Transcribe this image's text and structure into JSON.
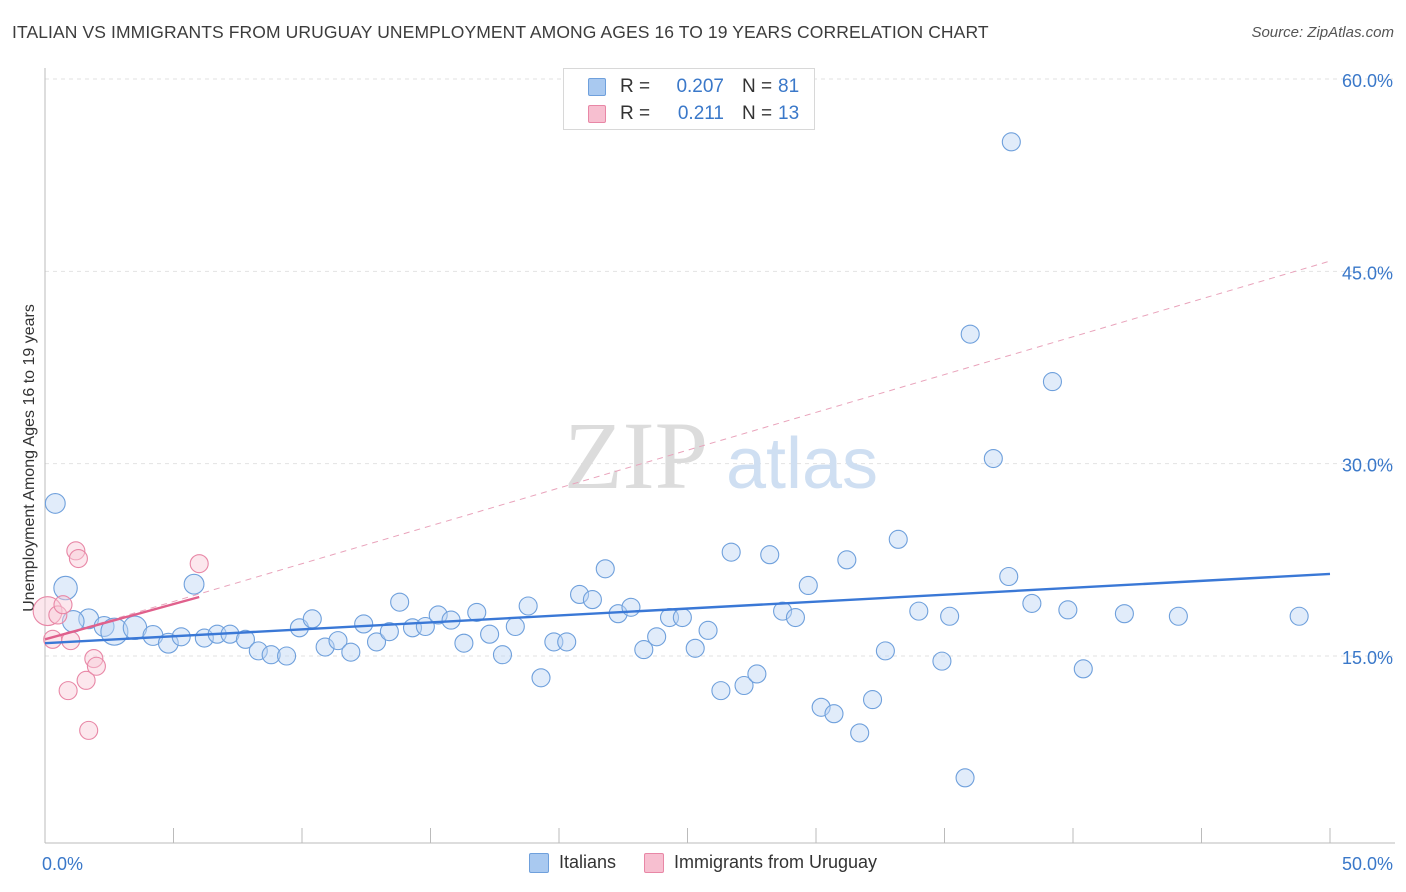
{
  "header": {
    "title": "ITALIAN VS IMMIGRANTS FROM URUGUAY UNEMPLOYMENT AMONG AGES 16 TO 19 YEARS CORRELATION CHART",
    "source": "Source: ZipAtlas.com"
  },
  "watermark": {
    "zip": "ZIP",
    "atlas": "atlas"
  },
  "legend": {
    "rows": [
      {
        "r_label": "R =",
        "r_value": "0.207",
        "n_label": "N =",
        "n_value": "81",
        "color": "#a9c9f0",
        "border": "#6fa0dc"
      },
      {
        "r_label": "R =",
        "r_value": "0.211",
        "n_label": "N =",
        "n_value": "13",
        "color": "#f7bfd0",
        "border": "#e887a6"
      }
    ],
    "bottom": [
      {
        "label": "Italians",
        "color": "#a9c9f0",
        "border": "#6fa0dc"
      },
      {
        "label": "Immigrants from Uruguay",
        "color": "#f7bfd0",
        "border": "#e887a6"
      }
    ]
  },
  "chart_data": {
    "type": "scatter",
    "title": "ITALIAN VS IMMIGRANTS FROM URUGUAY UNEMPLOYMENT AMONG AGES 16 TO 19 YEARS CORRELATION CHART",
    "xlabel": "",
    "ylabel": "Unemployment Among Ages 16 to 19 years",
    "xlim": [
      0,
      50
    ],
    "ylim": [
      0,
      62
    ],
    "x_tick_labels": [
      {
        "value": 0,
        "label": "0.0%"
      },
      {
        "value": 50,
        "label": "50.0%"
      }
    ],
    "y_tick_labels": [
      {
        "value": 15,
        "label": "15.0%"
      },
      {
        "value": 30,
        "label": "30.0%"
      },
      {
        "value": 45,
        "label": "45.0%"
      },
      {
        "value": 60,
        "label": "60.0%"
      }
    ],
    "grid": true,
    "colors": {
      "italians": "#3a78d6",
      "uruguay": "#e0608c"
    },
    "series": [
      {
        "name": "Italians",
        "points": [
          [
            0.4,
            26.9,
            1.1
          ],
          [
            0.8,
            20.3,
            1.3
          ],
          [
            1.7,
            17.9,
            1.1
          ],
          [
            2.3,
            17.3,
            1.1
          ],
          [
            1.1,
            17.7,
            1.2
          ],
          [
            2.7,
            16.9,
            1.5
          ],
          [
            3.5,
            17.2,
            1.3
          ],
          [
            4.2,
            16.6,
            1.1
          ],
          [
            4.8,
            16.0,
            1.1
          ],
          [
            5.3,
            16.5,
            1.0
          ],
          [
            5.8,
            20.6,
            1.1
          ],
          [
            6.2,
            16.4,
            1.0
          ],
          [
            6.7,
            16.7,
            1.0
          ],
          [
            7.2,
            16.7,
            1.0
          ],
          [
            7.8,
            16.3,
            1.0
          ],
          [
            8.3,
            15.4,
            1.0
          ],
          [
            8.8,
            15.1,
            1.0
          ],
          [
            9.4,
            15.0,
            1.0
          ],
          [
            9.9,
            17.2,
            1.0
          ],
          [
            10.4,
            17.9,
            1.0
          ],
          [
            10.9,
            15.7,
            1.0
          ],
          [
            11.4,
            16.2,
            1.0
          ],
          [
            11.9,
            15.3,
            1.0
          ],
          [
            12.4,
            17.5,
            1.0
          ],
          [
            12.9,
            16.1,
            1.0
          ],
          [
            13.4,
            16.9,
            1.0
          ],
          [
            13.8,
            19.2,
            1.0
          ],
          [
            14.3,
            17.2,
            1.0
          ],
          [
            14.8,
            17.3,
            1.0
          ],
          [
            15.3,
            18.2,
            1.0
          ],
          [
            15.8,
            17.8,
            1.0
          ],
          [
            16.3,
            16.0,
            1.0
          ],
          [
            16.8,
            18.4,
            1.0
          ],
          [
            17.3,
            16.7,
            1.0
          ],
          [
            17.8,
            15.1,
            1.0
          ],
          [
            18.3,
            17.3,
            1.0
          ],
          [
            18.8,
            18.9,
            1.0
          ],
          [
            19.3,
            13.3,
            1.0
          ],
          [
            19.8,
            16.1,
            1.0
          ],
          [
            20.3,
            16.1,
            1.0
          ],
          [
            20.8,
            19.8,
            1.0
          ],
          [
            21.3,
            19.4,
            1.0
          ],
          [
            21.8,
            21.8,
            1.0
          ],
          [
            22.3,
            18.3,
            1.0
          ],
          [
            22.8,
            18.8,
            1.0
          ],
          [
            23.3,
            15.5,
            1.0
          ],
          [
            23.8,
            16.5,
            1.0
          ],
          [
            24.3,
            18.0,
            1.0
          ],
          [
            24.8,
            18.0,
            1.0
          ],
          [
            25.3,
            15.6,
            1.0
          ],
          [
            25.8,
            17.0,
            1.0
          ],
          [
            26.3,
            12.3,
            1.0
          ],
          [
            26.7,
            23.1,
            1.0
          ],
          [
            27.2,
            12.7,
            1.0
          ],
          [
            27.7,
            13.6,
            1.0
          ],
          [
            28.2,
            22.9,
            1.0
          ],
          [
            28.7,
            18.5,
            1.0
          ],
          [
            29.2,
            18.0,
            1.0
          ],
          [
            29.7,
            20.5,
            1.0
          ],
          [
            30.2,
            11.0,
            1.0
          ],
          [
            30.7,
            10.5,
            1.0
          ],
          [
            31.2,
            22.5,
            1.0
          ],
          [
            31.7,
            9.0,
            1.0
          ],
          [
            32.2,
            11.6,
            1.0
          ],
          [
            32.7,
            15.4,
            1.0
          ],
          [
            33.2,
            24.1,
            1.0
          ],
          [
            34.0,
            18.5,
            1.0
          ],
          [
            34.9,
            14.6,
            1.0
          ],
          [
            35.2,
            18.1,
            1.0
          ],
          [
            35.8,
            5.5,
            1.0
          ],
          [
            36.0,
            40.1,
            1.0
          ],
          [
            36.9,
            30.4,
            1.0
          ],
          [
            37.6,
            55.1,
            1.0
          ],
          [
            37.5,
            21.2,
            1.0
          ],
          [
            38.4,
            19.1,
            1.0
          ],
          [
            39.2,
            36.4,
            1.0
          ],
          [
            39.8,
            18.6,
            1.0
          ],
          [
            40.4,
            14.0,
            1.0
          ],
          [
            42.0,
            18.3,
            1.0
          ],
          [
            44.1,
            18.1,
            1.0
          ],
          [
            48.8,
            18.1,
            1.0
          ]
        ],
        "trend": {
          "x0": 0,
          "y0": 16.0,
          "x1": 50,
          "y1": 21.4
        }
      },
      {
        "name": "Immigrants from Uruguay",
        "points": [
          [
            0.1,
            18.5,
            1.6
          ],
          [
            0.3,
            16.3,
            1.0
          ],
          [
            0.5,
            18.2,
            1.0
          ],
          [
            0.7,
            19.0,
            1.0
          ],
          [
            0.9,
            12.3,
            1.0
          ],
          [
            1.0,
            16.2,
            1.0
          ],
          [
            1.2,
            23.2,
            1.0
          ],
          [
            1.3,
            22.6,
            1.0
          ],
          [
            1.6,
            13.1,
            1.0
          ],
          [
            1.7,
            9.2,
            1.0
          ],
          [
            1.9,
            14.8,
            1.0
          ],
          [
            2.0,
            14.2,
            1.0
          ],
          [
            6.0,
            22.2,
            1.0
          ]
        ],
        "trend": {
          "x0": 0,
          "y0": 16.3,
          "x1": 6.0,
          "y1": 19.6
        },
        "trend_extended": {
          "x0": 0,
          "y0": 16.3,
          "x1": 50,
          "y1": 45.8
        }
      }
    ]
  }
}
